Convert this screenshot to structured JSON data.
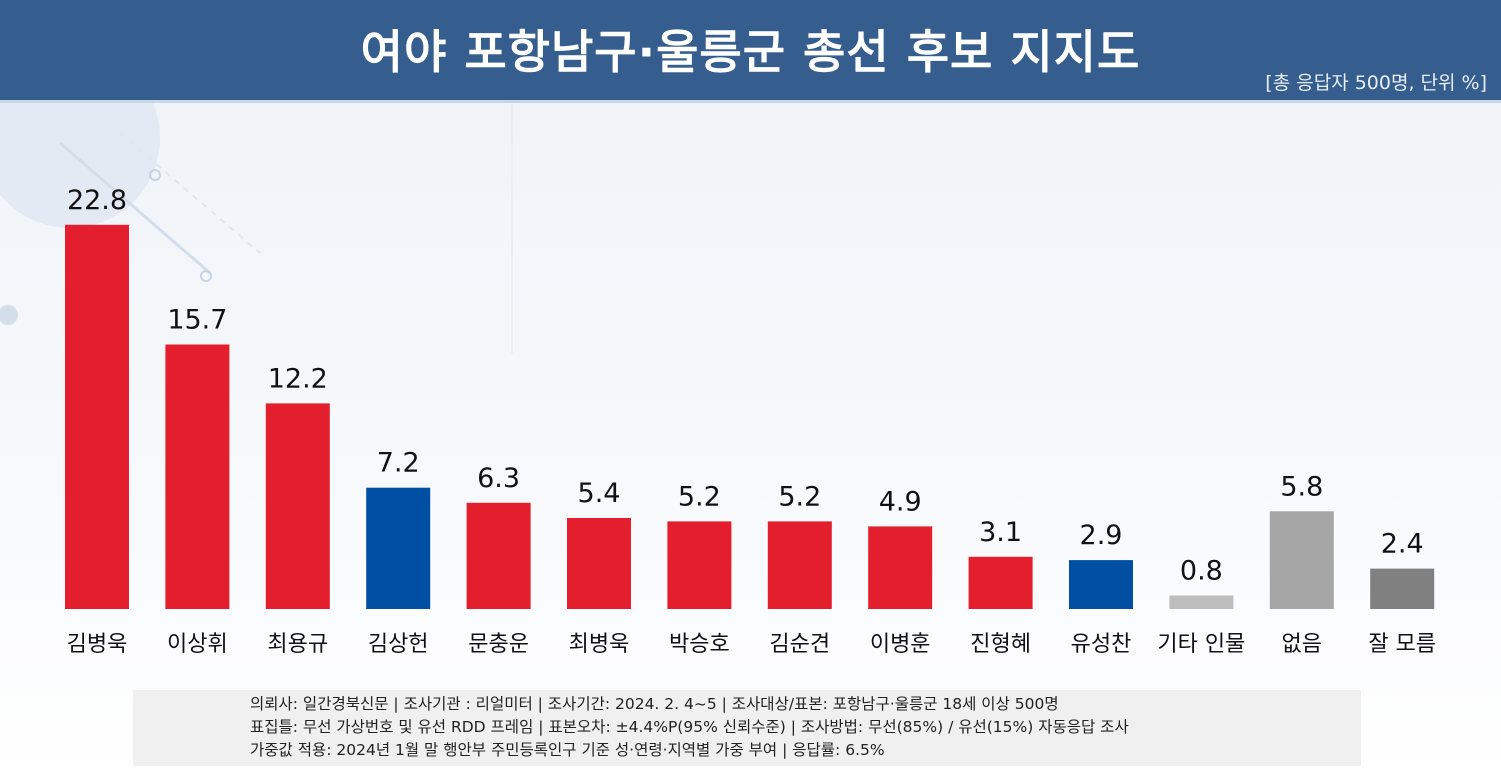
{
  "header": {
    "title": "여야 포항남구·울릉군 총선 후보 지지도",
    "subtitle": "[총 응답자 500명, 단위 %]"
  },
  "colors": {
    "header_bg": "#355d8e",
    "red": "#e41f2d",
    "blue": "#004fa3",
    "light_gray": "#bdbdbd",
    "gray": "#a6a6a6",
    "dark_gray": "#808080"
  },
  "chart_data": {
    "type": "bar",
    "title": "여야 포항남구·울릉군 총선 후보 지지도",
    "xlabel": "",
    "ylabel": "",
    "ylim": [
      0,
      25
    ],
    "grid": false,
    "categories": [
      "김병욱",
      "이상휘",
      "최용규",
      "김상헌",
      "문충운",
      "최병욱",
      "박승호",
      "김순견",
      "이병훈",
      "진형혜",
      "유성찬",
      "기타 인물",
      "없음",
      "잘 모름"
    ],
    "values": [
      22.8,
      15.7,
      12.2,
      7.2,
      6.3,
      5.4,
      5.2,
      5.2,
      4.9,
      3.1,
      2.9,
      0.8,
      5.8,
      2.4
    ],
    "value_labels": [
      "22.8",
      "15.7",
      "12.2",
      "7.2",
      "6.3",
      "5.4",
      "5.2",
      "5.2",
      "4.9",
      "3.1",
      "2.9",
      "0.8",
      "5.8",
      "2.4"
    ],
    "bar_colors": [
      "#e41f2d",
      "#e41f2d",
      "#e41f2d",
      "#004fa3",
      "#e41f2d",
      "#e41f2d",
      "#e41f2d",
      "#e41f2d",
      "#e41f2d",
      "#e41f2d",
      "#004fa3",
      "#bdbdbd",
      "#a6a6a6",
      "#808080"
    ]
  },
  "footnote": {
    "lines": [
      "의뢰사: 일간경북신문 | 조사기관 : 리얼미터  |  조사기간: 2024. 2. 4~5 | 조사대상/표본: 포항남구·울릉군 18세 이상 500명",
      "표집틀: 무선 가상번호 및 유선 RDD 프레임 | 표본오차: ±4.4%P(95% 신뢰수준) | 조사방법: 무선(85%) / 유선(15%) 자동응답 조사",
      "가중값 적용: 2024년 1월 말 행안부 주민등록인구 기준 성·연령·지역별 가중 부여 | 응답률: 6.5%"
    ]
  }
}
